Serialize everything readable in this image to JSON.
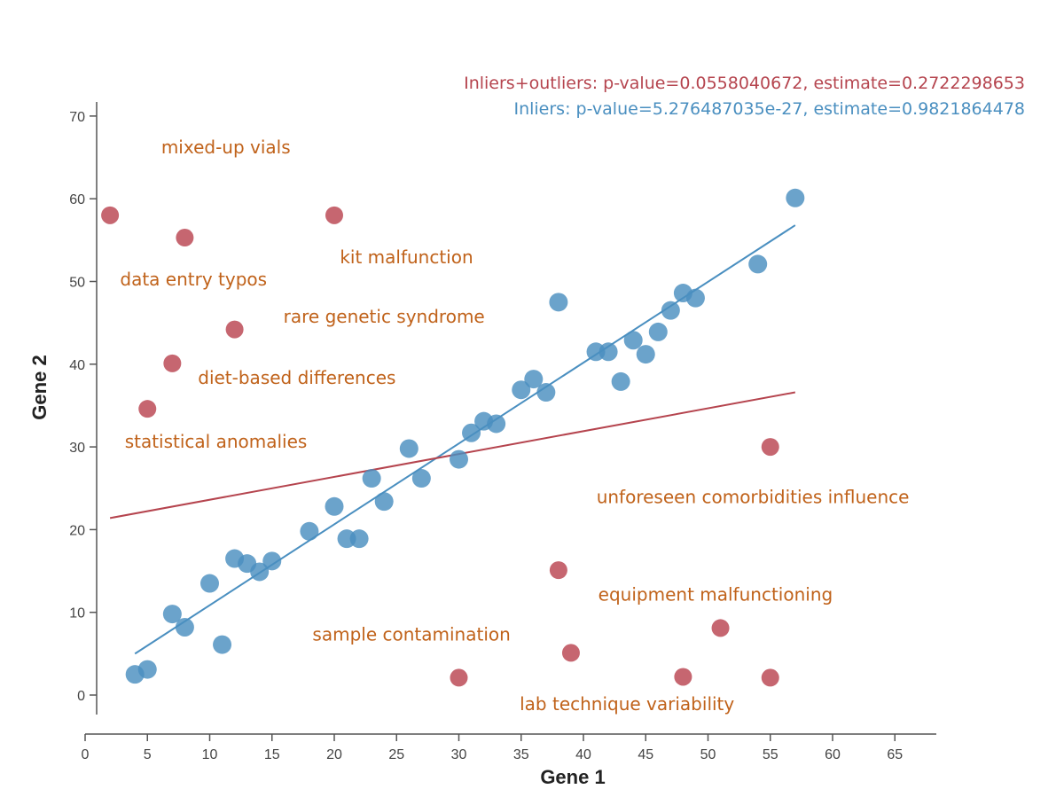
{
  "chart_data": {
    "type": "scatter",
    "xlabel": "Gene 1",
    "ylabel": "Gene 2",
    "xlim": [
      0,
      68
    ],
    "ylim": [
      -4,
      72
    ],
    "xticks": [
      0,
      5,
      10,
      15,
      20,
      25,
      30,
      35,
      40,
      45,
      50,
      55,
      60,
      65
    ],
    "yticks": [
      0,
      10,
      20,
      30,
      40,
      50,
      60,
      70
    ],
    "grid": false,
    "stats": [
      {
        "text": "Inliers+outliers: p-value=0.0558040672, estimate=0.2722298653",
        "color": "#b5444e"
      },
      {
        "text": "Inliers: p-value=5.276487035e-27, estimate=0.9821864478",
        "color": "#4a8fc0"
      }
    ],
    "series": [
      {
        "name": "",
        "color": "#4a8fc0",
        "points": [
          [
            4,
            2.5
          ],
          [
            5,
            3.1
          ],
          [
            7,
            9.8
          ],
          [
            8,
            8.2
          ],
          [
            10,
            13.5
          ],
          [
            11,
            6.1
          ],
          [
            12,
            16.5
          ],
          [
            13,
            15.9
          ],
          [
            14,
            14.9
          ],
          [
            15,
            16.2
          ],
          [
            18,
            19.8
          ],
          [
            20,
            22.8
          ],
          [
            21,
            18.9
          ],
          [
            22,
            18.9
          ],
          [
            23,
            26.2
          ],
          [
            24,
            23.4
          ],
          [
            26,
            29.8
          ],
          [
            27,
            26.2
          ],
          [
            30,
            28.5
          ],
          [
            31,
            31.7
          ],
          [
            32,
            33.1
          ],
          [
            33,
            32.8
          ],
          [
            35,
            36.9
          ],
          [
            36,
            38.2
          ],
          [
            37,
            36.6
          ],
          [
            38,
            47.5
          ],
          [
            41,
            41.5
          ],
          [
            42,
            41.5
          ],
          [
            43,
            37.9
          ],
          [
            44,
            42.9
          ],
          [
            45,
            41.2
          ],
          [
            46,
            43.9
          ],
          [
            47,
            46.5
          ],
          [
            48,
            48.6
          ],
          [
            49,
            48.0
          ],
          [
            54,
            52.1
          ],
          [
            57,
            60.1
          ]
        ]
      },
      {
        "name": "",
        "color": "#c05560",
        "points": [
          [
            2,
            58.0
          ],
          [
            5,
            34.6
          ],
          [
            7,
            40.1
          ],
          [
            8,
            55.3
          ],
          [
            12,
            44.2
          ],
          [
            20,
            58.0
          ],
          [
            30,
            2.1
          ],
          [
            38,
            15.1
          ],
          [
            39,
            5.1
          ],
          [
            48,
            2.2
          ],
          [
            51,
            8.1
          ],
          [
            55,
            30.0
          ],
          [
            55,
            2.1
          ]
        ]
      }
    ],
    "fit_lines": [
      {
        "color": "#4a8fc0",
        "x": [
          4,
          57
        ],
        "y": [
          5.0,
          56.8
        ]
      },
      {
        "color": "#b5444e",
        "x": [
          2,
          57
        ],
        "y": [
          21.4,
          36.6
        ]
      }
    ],
    "annotations": [
      {
        "text": "mixed-up vials",
        "x": 11.3,
        "y": 65.5
      },
      {
        "text": "kit malfunction",
        "x": 25.8,
        "y": 52.2
      },
      {
        "text": "data entry typos",
        "x": 8.7,
        "y": 49.5
      },
      {
        "text": "rare genetic syndrome",
        "x": 24.0,
        "y": 45.0
      },
      {
        "text": "diet-based differences",
        "x": 17.0,
        "y": 37.6
      },
      {
        "text": "statistical anomalies",
        "x": 10.5,
        "y": 29.9
      },
      {
        "text": "unforeseen comorbidities influence",
        "x": 53.6,
        "y": 23.2
      },
      {
        "text": "equipment malfunctioning",
        "x": 50.6,
        "y": 11.4
      },
      {
        "text": "sample contamination",
        "x": 26.2,
        "y": 6.6
      },
      {
        "text": "lab technique variability",
        "x": 43.5,
        "y": -1.8
      }
    ],
    "annotation_color": "#c0621a"
  }
}
